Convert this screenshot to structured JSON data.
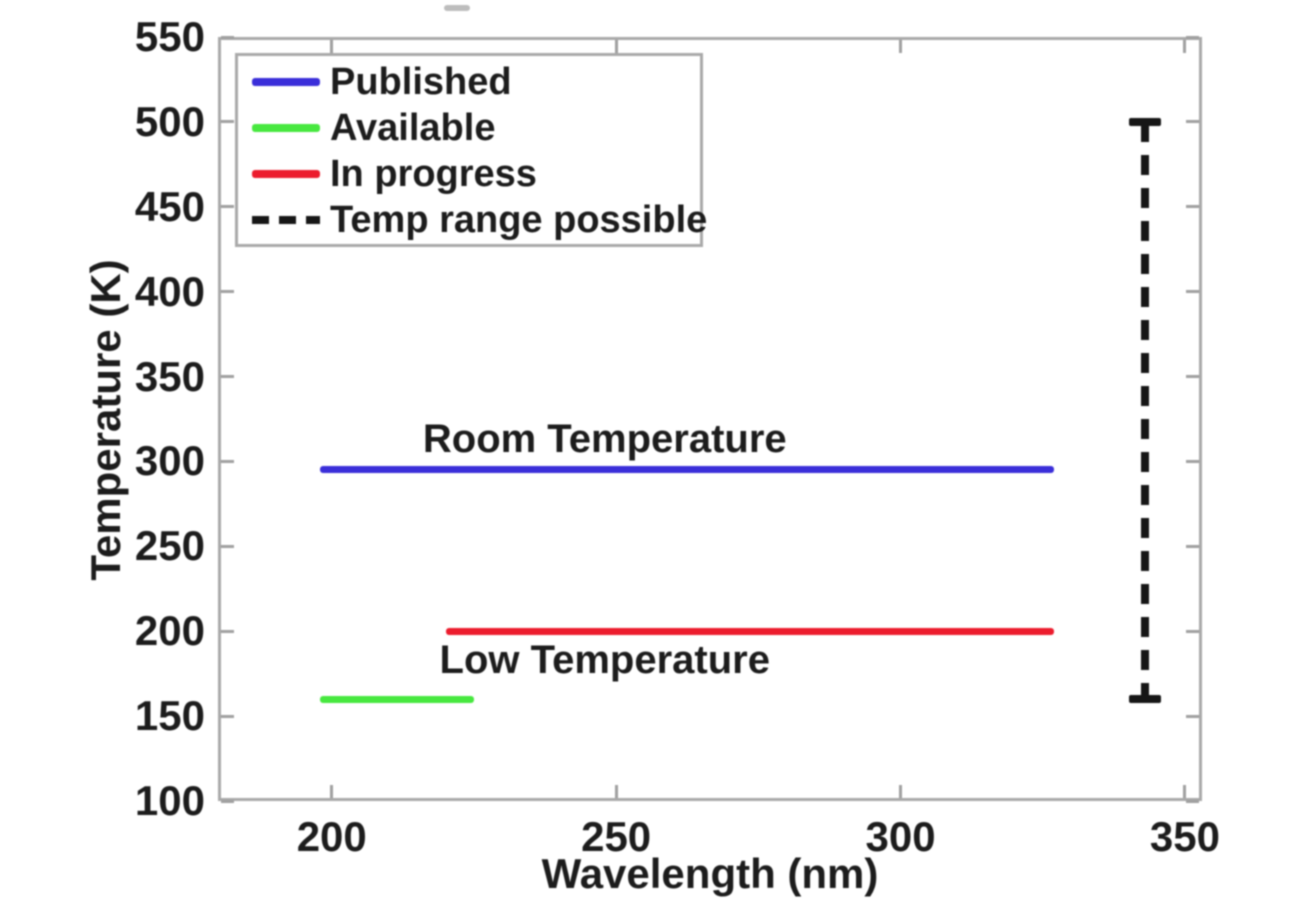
{
  "colors": {
    "background": "#ffffff",
    "axis_box": "#a9a9a9",
    "tick": "#a0a0a0",
    "text": "#1c1c1c",
    "top_artifact": "#bdbdbd"
  },
  "chart_data": {
    "type": "line",
    "title": "",
    "xlabel": "Wavelength (nm)",
    "ylabel": "Temperature (K)",
    "xlim": [
      180,
      353
    ],
    "ylim": [
      100,
      550
    ],
    "xticks": [
      200,
      250,
      300,
      350
    ],
    "yticks": [
      100,
      150,
      200,
      250,
      300,
      350,
      400,
      450,
      500,
      550
    ],
    "grid": false,
    "legend": {
      "position": "top-left",
      "entries": [
        "Published",
        "Available",
        "In progress",
        "Temp range possible"
      ]
    },
    "series": [
      {
        "name": "Published",
        "color": "#3a2ed9",
        "style": "solid",
        "orientation": "horizontal",
        "points": [
          [
            198,
            295
          ],
          [
            327,
            295
          ]
        ]
      },
      {
        "name": "Available",
        "color": "#47e83f",
        "style": "solid",
        "orientation": "horizontal",
        "points": [
          [
            198,
            160
          ],
          [
            225,
            160
          ]
        ]
      },
      {
        "name": "In progress",
        "color": "#ec1c2d",
        "style": "solid",
        "orientation": "horizontal",
        "points": [
          [
            220,
            200
          ],
          [
            327,
            200
          ]
        ]
      },
      {
        "name": "Temp range possible",
        "color": "#161616",
        "style": "dashed",
        "orientation": "vertical",
        "endcaps": true,
        "points": [
          [
            343,
            160
          ],
          [
            343,
            500
          ]
        ]
      }
    ],
    "annotations": [
      {
        "text": "Room Temperature",
        "x": 248,
        "y": 313
      },
      {
        "text": "Low Temperature",
        "x": 248,
        "y": 183
      }
    ]
  }
}
